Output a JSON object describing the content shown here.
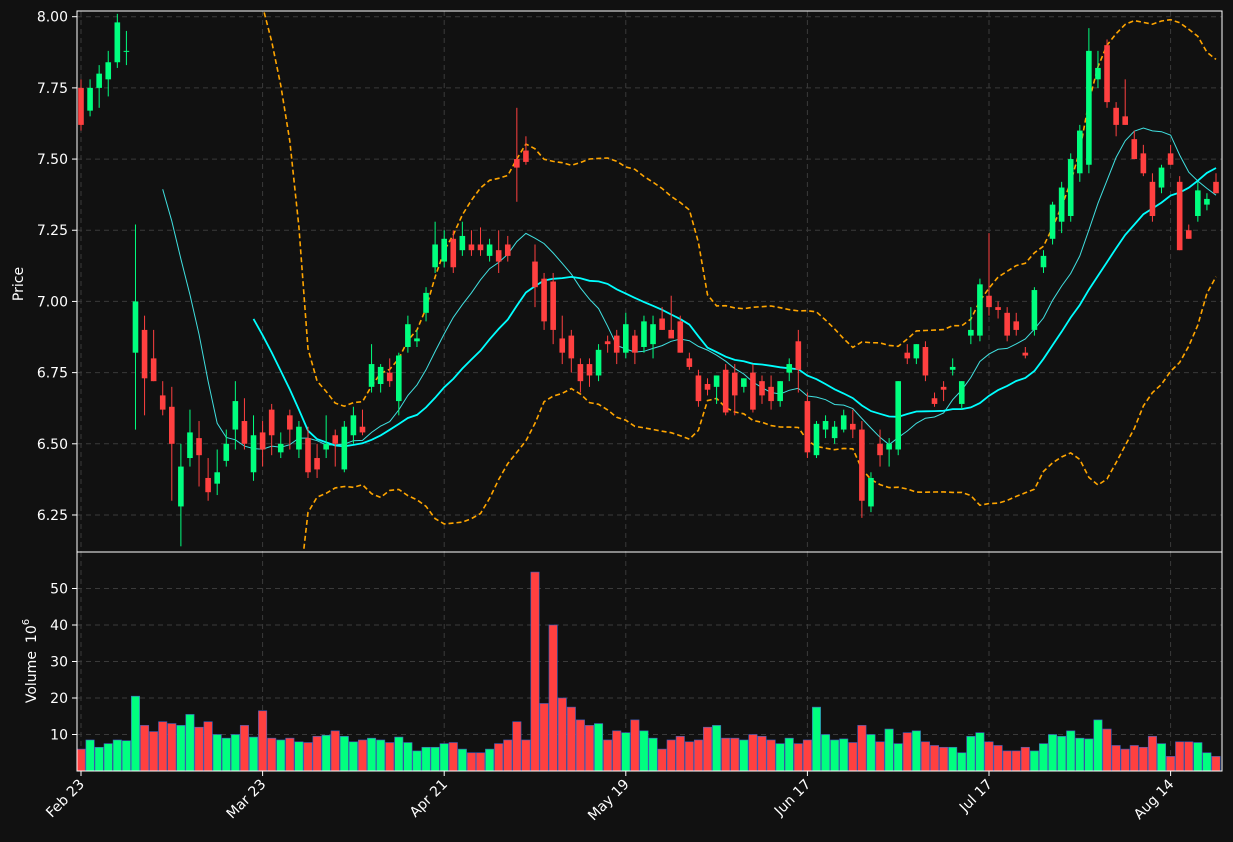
{
  "chart_data": {
    "type": "candlestick",
    "price_panel": {
      "ylabel": "Price",
      "ylim": [
        6.12,
        8.02
      ],
      "y_ticks": [
        "6.25",
        "6.50",
        "6.75",
        "7.00",
        "7.25",
        "7.50",
        "7.75",
        "8.00"
      ],
      "grid": true
    },
    "volume_panel": {
      "ylabel": "Volume",
      "ylabel_exponent": "10",
      "ylabel_exponent_power": "6",
      "ylim": [
        0,
        60
      ],
      "y_ticks": [
        "10",
        "20",
        "30",
        "40",
        "50"
      ],
      "grid": true
    },
    "x_tick_labels": [
      {
        "label": "Feb 23",
        "index": 0
      },
      {
        "label": "Mar 23",
        "index": 20
      },
      {
        "label": "Apr 21",
        "index": 40
      },
      {
        "label": "May 19",
        "index": 60
      },
      {
        "label": "Jun 17",
        "index": 80
      },
      {
        "label": "Jul 17",
        "index": 100
      },
      {
        "label": "Aug 14",
        "index": 120
      }
    ],
    "colors": {
      "up": "#00ff7f",
      "down": "#ff4040",
      "volume_edge": "#4060c0",
      "ma_fast": "#40e0e0",
      "ma_slow": "#00ffff",
      "bands": "#ffa500",
      "background": "#111111",
      "grid": "#3a3a3a"
    },
    "ohlcv": [
      [
        7.75,
        7.78,
        7.6,
        7.62,
        6.0
      ],
      [
        7.67,
        7.78,
        7.65,
        7.75,
        8.5
      ],
      [
        7.75,
        7.83,
        7.68,
        7.8,
        6.5
      ],
      [
        7.78,
        7.88,
        7.72,
        7.84,
        7.5
      ],
      [
        7.84,
        8.01,
        7.82,
        7.98,
        8.5
      ],
      [
        7.88,
        7.95,
        7.83,
        7.88,
        8.3
      ],
      [
        6.82,
        7.27,
        6.55,
        7.0,
        20.5
      ],
      [
        6.9,
        6.95,
        6.6,
        6.73,
        12.5
      ],
      [
        6.8,
        6.9,
        6.72,
        6.72,
        10.8
      ],
      [
        6.67,
        6.72,
        6.6,
        6.62,
        13.5
      ],
      [
        6.63,
        6.7,
        6.3,
        6.5,
        13.0
      ],
      [
        6.28,
        6.5,
        6.14,
        6.42,
        12.5
      ],
      [
        6.45,
        6.62,
        6.42,
        6.54,
        15.5
      ],
      [
        6.52,
        6.58,
        6.35,
        6.46,
        12.0
      ],
      [
        6.38,
        6.45,
        6.3,
        6.33,
        13.5
      ],
      [
        6.36,
        6.48,
        6.32,
        6.4,
        10.0
      ],
      [
        6.44,
        6.55,
        6.42,
        6.5,
        9.0
      ],
      [
        6.55,
        6.72,
        6.48,
        6.65,
        10.0
      ],
      [
        6.58,
        6.66,
        6.48,
        6.5,
        12.5
      ],
      [
        6.4,
        6.6,
        6.37,
        6.53,
        9.3
      ],
      [
        6.54,
        6.58,
        6.42,
        6.48,
        16.5
      ],
      [
        6.62,
        6.64,
        6.46,
        6.53,
        9.0
      ],
      [
        6.47,
        6.54,
        6.45,
        6.5,
        8.5
      ],
      [
        6.6,
        6.62,
        6.48,
        6.55,
        9.0
      ],
      [
        6.48,
        6.58,
        6.45,
        6.56,
        8.0
      ],
      [
        6.52,
        6.56,
        6.38,
        6.4,
        7.8
      ],
      [
        6.45,
        6.5,
        6.38,
        6.41,
        9.5
      ],
      [
        6.48,
        6.6,
        6.45,
        6.5,
        9.8
      ],
      [
        6.53,
        6.55,
        6.42,
        6.5,
        11.0
      ],
      [
        6.41,
        6.58,
        6.4,
        6.56,
        9.5
      ],
      [
        6.53,
        6.63,
        6.5,
        6.6,
        8.0
      ],
      [
        6.56,
        6.62,
        6.53,
        6.54,
        8.5
      ],
      [
        6.7,
        6.85,
        6.68,
        6.78,
        9.0
      ],
      [
        6.71,
        6.78,
        6.68,
        6.77,
        8.5
      ],
      [
        6.75,
        6.8,
        6.7,
        6.72,
        7.8
      ],
      [
        6.65,
        6.82,
        6.6,
        6.81,
        9.3
      ],
      [
        6.84,
        6.95,
        6.82,
        6.92,
        7.8
      ],
      [
        6.86,
        6.9,
        6.84,
        6.87,
        5.5
      ],
      [
        6.96,
        7.05,
        6.93,
        7.03,
        6.5
      ],
      [
        7.12,
        7.28,
        7.1,
        7.2,
        6.5
      ],
      [
        7.14,
        7.25,
        7.12,
        7.22,
        7.5
      ],
      [
        7.22,
        7.25,
        7.1,
        7.12,
        7.8
      ],
      [
        7.18,
        7.28,
        7.16,
        7.23,
        6.0
      ],
      [
        7.2,
        7.25,
        7.16,
        7.18,
        5.0
      ],
      [
        7.2,
        7.26,
        7.16,
        7.18,
        5.0
      ],
      [
        7.16,
        7.22,
        7.14,
        7.2,
        6.0
      ],
      [
        7.18,
        7.25,
        7.1,
        7.14,
        7.5
      ],
      [
        7.2,
        7.23,
        7.14,
        7.16,
        8.5
      ],
      [
        7.5,
        7.68,
        7.35,
        7.47,
        13.5
      ],
      [
        7.53,
        7.58,
        7.48,
        7.49,
        8.5
      ],
      [
        7.14,
        7.2,
        6.98,
        7.05,
        54.5
      ],
      [
        7.08,
        7.1,
        6.9,
        6.93,
        18.5
      ],
      [
        7.07,
        7.1,
        6.85,
        6.9,
        40.0
      ],
      [
        6.87,
        6.95,
        6.78,
        6.82,
        20.0
      ],
      [
        6.88,
        6.9,
        6.75,
        6.8,
        17.5
      ],
      [
        6.78,
        6.8,
        6.68,
        6.72,
        14.0
      ],
      [
        6.78,
        6.8,
        6.7,
        6.74,
        12.5
      ],
      [
        6.74,
        6.85,
        6.72,
        6.83,
        13.0
      ],
      [
        6.86,
        6.88,
        6.82,
        6.85,
        8.5
      ],
      [
        6.88,
        6.9,
        6.78,
        6.82,
        11.0
      ],
      [
        6.82,
        6.96,
        6.8,
        6.92,
        10.5
      ],
      [
        6.88,
        6.9,
        6.78,
        6.82,
        14.0
      ],
      [
        6.84,
        6.95,
        6.82,
        6.93,
        11.0
      ],
      [
        6.85,
        6.95,
        6.8,
        6.92,
        9.0
      ],
      [
        6.94,
        6.98,
        6.9,
        6.9,
        6.0
      ],
      [
        6.9,
        7.02,
        6.88,
        6.87,
        8.5
      ],
      [
        6.93,
        6.95,
        6.82,
        6.82,
        9.5
      ],
      [
        6.8,
        6.82,
        6.76,
        6.77,
        8.0
      ],
      [
        6.74,
        6.76,
        6.63,
        6.65,
        8.5
      ],
      [
        6.71,
        6.73,
        6.67,
        6.69,
        12.0
      ],
      [
        6.7,
        6.74,
        6.64,
        6.74,
        12.5
      ],
      [
        6.76,
        6.78,
        6.6,
        6.61,
        9.0
      ],
      [
        6.75,
        6.78,
        6.6,
        6.67,
        9.0
      ],
      [
        6.7,
        6.73,
        6.68,
        6.73,
        8.5
      ],
      [
        6.75,
        6.78,
        6.61,
        6.62,
        10.0
      ],
      [
        6.72,
        6.74,
        6.64,
        6.67,
        9.5
      ],
      [
        6.7,
        6.74,
        6.62,
        6.65,
        8.5
      ],
      [
        6.65,
        6.72,
        6.63,
        6.72,
        7.5
      ],
      [
        6.75,
        6.8,
        6.72,
        6.78,
        9.0
      ],
      [
        6.86,
        6.9,
        6.68,
        6.76,
        7.5
      ],
      [
        6.65,
        6.68,
        6.45,
        6.47,
        8.5
      ],
      [
        6.46,
        6.58,
        6.45,
        6.57,
        17.5
      ],
      [
        6.55,
        6.6,
        6.52,
        6.58,
        10.0
      ],
      [
        6.52,
        6.58,
        6.5,
        6.56,
        8.5
      ],
      [
        6.55,
        6.62,
        6.54,
        6.6,
        8.8
      ],
      [
        6.57,
        6.62,
        6.52,
        6.55,
        7.8
      ],
      [
        6.55,
        6.58,
        6.24,
        6.3,
        12.5
      ],
      [
        6.28,
        6.4,
        6.26,
        6.38,
        10.0
      ],
      [
        6.5,
        6.55,
        6.42,
        6.46,
        8.0
      ],
      [
        6.48,
        6.52,
        6.42,
        6.5,
        11.5
      ],
      [
        6.48,
        6.72,
        6.46,
        6.72,
        7.5
      ],
      [
        6.82,
        6.85,
        6.78,
        6.8,
        10.5
      ],
      [
        6.8,
        6.85,
        6.78,
        6.85,
        11.0
      ],
      [
        6.84,
        6.86,
        6.72,
        6.74,
        8.0
      ],
      [
        6.66,
        6.68,
        6.63,
        6.64,
        7.0
      ],
      [
        6.7,
        6.72,
        6.65,
        6.69,
        6.5
      ],
      [
        6.76,
        6.8,
        6.74,
        6.77,
        6.5
      ],
      [
        6.64,
        6.72,
        6.62,
        6.72,
        5.0
      ],
      [
        6.88,
        6.98,
        6.85,
        6.9,
        9.5
      ],
      [
        6.88,
        7.08,
        6.86,
        7.06,
        10.5
      ],
      [
        7.02,
        7.24,
        6.95,
        6.98,
        8.0
      ],
      [
        6.98,
        7.0,
        6.94,
        6.97,
        7.0
      ],
      [
        6.96,
        6.98,
        6.86,
        6.88,
        5.5
      ],
      [
        6.93,
        6.96,
        6.88,
        6.9,
        5.5
      ],
      [
        6.82,
        6.84,
        6.8,
        6.81,
        6.5
      ],
      [
        6.9,
        7.05,
        6.88,
        7.04,
        5.5
      ],
      [
        7.12,
        7.18,
        7.1,
        7.16,
        7.5
      ],
      [
        7.22,
        7.35,
        7.2,
        7.34,
        10.0
      ],
      [
        7.28,
        7.42,
        7.24,
        7.4,
        9.5
      ],
      [
        7.3,
        7.52,
        7.28,
        7.5,
        11.0
      ],
      [
        7.45,
        7.62,
        7.42,
        7.6,
        9.0
      ],
      [
        7.48,
        7.96,
        7.45,
        7.88,
        8.8
      ],
      [
        7.78,
        7.88,
        7.75,
        7.82,
        14.0
      ],
      [
        7.9,
        7.92,
        7.68,
        7.7,
        11.5
      ],
      [
        7.68,
        7.7,
        7.58,
        7.62,
        7.0
      ],
      [
        7.65,
        7.78,
        7.62,
        7.62,
        6.0
      ],
      [
        7.57,
        7.6,
        7.5,
        7.5,
        7.0
      ],
      [
        7.52,
        7.55,
        7.44,
        7.45,
        6.5
      ],
      [
        7.42,
        7.45,
        7.28,
        7.3,
        9.5
      ],
      [
        7.4,
        7.48,
        7.38,
        7.47,
        7.5
      ],
      [
        7.52,
        7.55,
        7.48,
        7.48,
        4.0
      ],
      [
        7.42,
        7.44,
        7.18,
        7.18,
        8.0
      ],
      [
        7.25,
        7.27,
        7.22,
        7.22,
        8.0
      ],
      [
        7.3,
        7.42,
        7.28,
        7.39,
        7.8
      ],
      [
        7.34,
        7.38,
        7.32,
        7.36,
        5.0
      ],
      [
        7.42,
        7.45,
        7.38,
        7.38,
        4.0
      ]
    ]
  }
}
